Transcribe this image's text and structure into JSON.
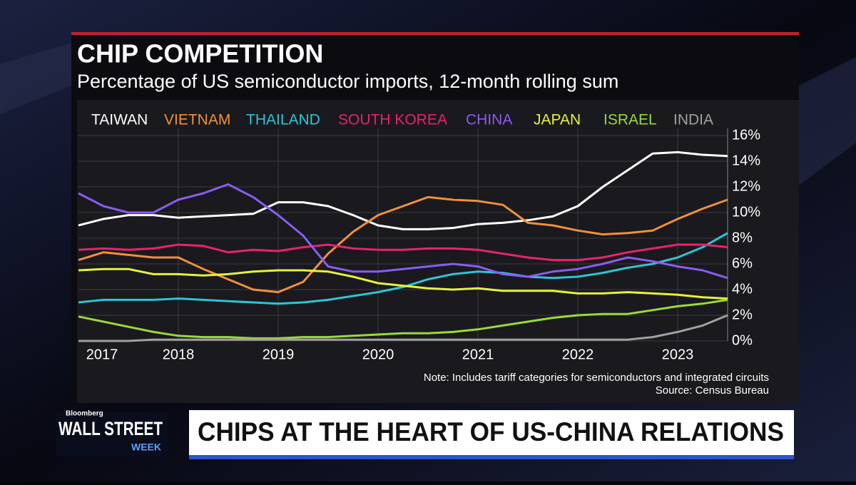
{
  "chart_data": {
    "type": "line",
    "title": "CHIP COMPETITION",
    "subtitle": "Percentage of US semiconductor imports, 12-month rolling sum",
    "note": "Note: Includes tariff categories for semiconductors and integrated circuits",
    "source": "Source: Census Bureau",
    "x": [
      2017,
      2017.25,
      2017.5,
      2017.75,
      2018,
      2018.25,
      2018.5,
      2018.75,
      2019,
      2019.25,
      2019.5,
      2019.75,
      2020,
      2020.25,
      2020.5,
      2020.75,
      2021,
      2021.25,
      2021.5,
      2021.75,
      2022,
      2022.25,
      2022.5,
      2022.75,
      2023,
      2023.25,
      2023.5
    ],
    "xlim": [
      2017,
      2023.5
    ],
    "xticks": [
      2017,
      2018,
      2019,
      2020,
      2021,
      2022,
      2023
    ],
    "ylim": [
      0,
      16
    ],
    "yticks": [
      {
        "value": 0,
        "label": "0%"
      },
      {
        "value": 2,
        "label": "2%"
      },
      {
        "value": 4,
        "label": "4%"
      },
      {
        "value": 6,
        "label": "6%"
      },
      {
        "value": 8,
        "label": "8%"
      },
      {
        "value": 10,
        "label": "10%"
      },
      {
        "value": 12,
        "label": "12%"
      },
      {
        "value": 14,
        "label": "14%"
      },
      {
        "value": 16,
        "label": "16%"
      }
    ],
    "grid": true,
    "series": [
      {
        "name": "TAIWAN",
        "color": "#ffffff",
        "values": [
          9,
          9.5,
          9.8,
          9.8,
          9.6,
          9.7,
          9.8,
          9.9,
          10.8,
          10.8,
          10.5,
          9.8,
          9.0,
          8.7,
          8.7,
          8.8,
          9.1,
          9.2,
          9.4,
          9.7,
          10.5,
          12.0,
          13.3,
          14.6,
          14.7,
          14.5,
          14.4
        ]
      },
      {
        "name": "VIETNAM",
        "color": "#f0913a",
        "values": [
          6.3,
          6.9,
          6.7,
          6.5,
          6.5,
          5.6,
          4.8,
          4.0,
          3.8,
          4.6,
          6.8,
          8.5,
          9.8,
          10.5,
          11.2,
          11.0,
          10.9,
          10.6,
          9.2,
          9.0,
          8.6,
          8.3,
          8.4,
          8.6,
          9.5,
          10.3,
          11.0
        ]
      },
      {
        "name": "THAILAND",
        "color": "#2ec4d6",
        "values": [
          3.0,
          3.2,
          3.2,
          3.2,
          3.3,
          3.2,
          3.1,
          3.0,
          2.9,
          3.0,
          3.2,
          3.5,
          3.8,
          4.2,
          4.8,
          5.2,
          5.4,
          5.3,
          5.0,
          4.9,
          5.0,
          5.3,
          5.7,
          6.0,
          6.5,
          7.3,
          8.4
        ]
      },
      {
        "name": "SOUTH KOREA",
        "color": "#e8236d",
        "values": [
          7.1,
          7.2,
          7.1,
          7.2,
          7.5,
          7.4,
          6.9,
          7.1,
          7.0,
          7.3,
          7.5,
          7.2,
          7.1,
          7.1,
          7.2,
          7.2,
          7.1,
          6.8,
          6.5,
          6.3,
          6.3,
          6.5,
          6.9,
          7.2,
          7.5,
          7.5,
          7.3
        ]
      },
      {
        "name": "CHINA",
        "color": "#8a5cf0",
        "values": [
          11.5,
          10.5,
          10.0,
          10.0,
          11.0,
          11.5,
          12.2,
          11.2,
          9.8,
          8.2,
          5.8,
          5.4,
          5.4,
          5.6,
          5.8,
          6.0,
          5.8,
          5.2,
          5.0,
          5.4,
          5.6,
          6.0,
          6.5,
          6.2,
          5.8,
          5.5,
          4.9
        ]
      },
      {
        "name": "JAPAN",
        "color": "#e6f23a",
        "values": [
          5.5,
          5.6,
          5.6,
          5.2,
          5.2,
          5.1,
          5.2,
          5.4,
          5.5,
          5.5,
          5.4,
          5.0,
          4.5,
          4.3,
          4.1,
          4.0,
          4.1,
          3.9,
          3.9,
          3.9,
          3.7,
          3.7,
          3.8,
          3.7,
          3.6,
          3.4,
          3.3
        ]
      },
      {
        "name": "ISRAEL",
        "color": "#9ad93a",
        "values": [
          1.9,
          1.5,
          1.1,
          0.7,
          0.4,
          0.3,
          0.3,
          0.2,
          0.2,
          0.3,
          0.3,
          0.4,
          0.5,
          0.6,
          0.6,
          0.7,
          0.9,
          1.2,
          1.5,
          1.8,
          2.0,
          2.1,
          2.1,
          2.4,
          2.7,
          2.9,
          3.2
        ]
      },
      {
        "name": "INDIA",
        "color": "#a0a0a0",
        "values": [
          0,
          0,
          0,
          0.1,
          0.1,
          0.1,
          0.1,
          0.1,
          0.1,
          0.1,
          0.1,
          0.1,
          0.1,
          0.1,
          0.1,
          0.1,
          0.1,
          0.1,
          0.1,
          0.1,
          0.1,
          0.1,
          0.1,
          0.3,
          0.7,
          1.2,
          2.0
        ]
      }
    ]
  },
  "broadcast": {
    "brand": "Bloomberg",
    "show": "WALL STREET",
    "show_sub": "WEEK",
    "headline": "CHIPS AT THE HEART OF US-CHINA RELATIONS"
  }
}
